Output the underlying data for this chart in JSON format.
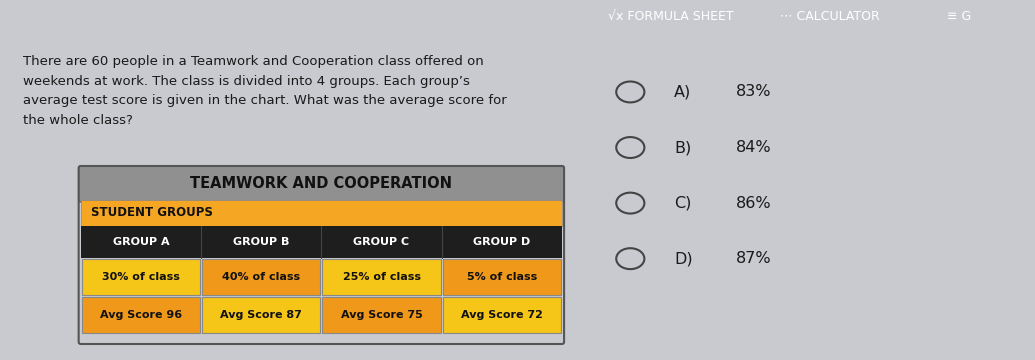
{
  "title": "TEAMWORK AND COOPERATION",
  "subtitle_row": "STUDENT GROUPS",
  "groups": [
    "GROUP A",
    "GROUP B",
    "GROUP C",
    "GROUP D"
  ],
  "percentages": [
    "30% of class",
    "40% of class",
    "25% of class",
    "5% of class"
  ],
  "avg_scores": [
    "Avg Score 96",
    "Avg Score 87",
    "Avg Score 75",
    "Avg Score 72"
  ],
  "question_text": "There are 60 people in a Teamwork and Cooperation class offered on\nweekends at work. The class is divided into 4 groups. Each group’s\naverage test score is given in the chart. What was the average score for\nthe whole class?",
  "answer_choices": [
    "A)  83%",
    "B)  84%",
    "C)  86%",
    "D)  87%"
  ],
  "orange_bar_color": "#f5a623",
  "dark_row_color": "#1e1e1e",
  "yellow_cell_color": "#f5c518",
  "orange_cell_color": "#f0981a",
  "dark_text": "#1a1a1a",
  "bg_main": "#c8cad0",
  "bg_right_panel": "#c0c3cc",
  "toolbar_bg": "#2a2b3d",
  "table_header_bg": "#909090",
  "table_border_color": "#555555",
  "radio_color": "#444444",
  "question_fontsize": 9.5,
  "answer_fontsize": 11.5,
  "title_fontsize": 10.5,
  "group_fontsize": 8.0,
  "cell_fontsize": 8.0
}
